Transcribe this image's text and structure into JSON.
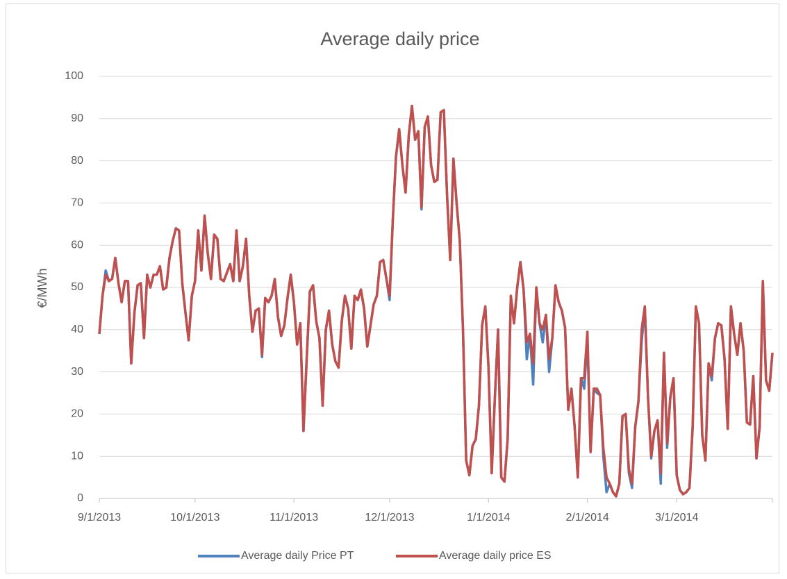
{
  "chart_data": {
    "type": "line",
    "title": "Average daily price",
    "y_label": "€/MWh",
    "x": [
      "9/1/2013",
      "9/2/2013",
      "9/3/2013",
      "9/4/2013",
      "9/5/2013",
      "9/6/2013",
      "9/7/2013",
      "9/8/2013",
      "9/9/2013",
      "9/10/2013",
      "9/11/2013",
      "9/12/2013",
      "9/13/2013",
      "9/14/2013",
      "9/15/2013",
      "9/16/2013",
      "9/17/2013",
      "9/18/2013",
      "9/19/2013",
      "9/20/2013",
      "9/21/2013",
      "9/22/2013",
      "9/23/2013",
      "9/24/2013",
      "9/25/2013",
      "9/26/2013",
      "9/27/2013",
      "9/28/2013",
      "9/29/2013",
      "9/30/2013",
      "10/1/2013",
      "10/2/2013",
      "10/3/2013",
      "10/4/2013",
      "10/5/2013",
      "10/6/2013",
      "10/7/2013",
      "10/8/2013",
      "10/9/2013",
      "10/10/2013",
      "10/11/2013",
      "10/12/2013",
      "10/13/2013",
      "10/14/2013",
      "10/15/2013",
      "10/16/2013",
      "10/17/2013",
      "10/18/2013",
      "10/19/2013",
      "10/20/2013",
      "10/21/2013",
      "10/22/2013",
      "10/23/2013",
      "10/24/2013",
      "10/25/2013",
      "10/26/2013",
      "10/27/2013",
      "10/28/2013",
      "10/29/2013",
      "10/30/2013",
      "10/31/2013",
      "11/1/2013",
      "11/2/2013",
      "11/3/2013",
      "11/4/2013",
      "11/5/2013",
      "11/6/2013",
      "11/7/2013",
      "11/8/2013",
      "11/9/2013",
      "11/10/2013",
      "11/11/2013",
      "11/12/2013",
      "11/13/2013",
      "11/14/2013",
      "11/15/2013",
      "11/16/2013",
      "11/17/2013",
      "11/18/2013",
      "11/19/2013",
      "11/20/2013",
      "11/21/2013",
      "11/22/2013",
      "11/23/2013",
      "11/24/2013",
      "11/25/2013",
      "11/26/2013",
      "11/27/2013",
      "11/28/2013",
      "11/29/2013",
      "11/30/2013",
      "12/1/2013",
      "12/2/2013",
      "12/3/2013",
      "12/4/2013",
      "12/5/2013",
      "12/6/2013",
      "12/7/2013",
      "12/8/2013",
      "12/9/2013",
      "12/10/2013",
      "12/11/2013",
      "12/12/2013",
      "12/13/2013",
      "12/14/2013",
      "12/15/2013",
      "12/16/2013",
      "12/17/2013",
      "12/18/2013",
      "12/19/2013",
      "12/20/2013",
      "12/21/2013",
      "12/22/2013",
      "12/23/2013",
      "12/24/2013",
      "12/25/2013",
      "12/26/2013",
      "12/27/2013",
      "12/28/2013",
      "12/29/2013",
      "12/30/2013",
      "12/31/2013",
      "1/1/2014",
      "1/2/2014",
      "1/3/2014",
      "1/4/2014",
      "1/5/2014",
      "1/6/2014",
      "1/7/2014",
      "1/8/2014",
      "1/9/2014",
      "1/10/2014",
      "1/11/2014",
      "1/12/2014",
      "1/13/2014",
      "1/14/2014",
      "1/15/2014",
      "1/16/2014",
      "1/17/2014",
      "1/18/2014",
      "1/19/2014",
      "1/20/2014",
      "1/21/2014",
      "1/22/2014",
      "1/23/2014",
      "1/24/2014",
      "1/25/2014",
      "1/26/2014",
      "1/27/2014",
      "1/28/2014",
      "1/29/2014",
      "1/30/2014",
      "1/31/2014",
      "2/1/2014",
      "2/2/2014",
      "2/3/2014",
      "2/4/2014",
      "2/5/2014",
      "2/6/2014",
      "2/7/2014",
      "2/8/2014",
      "2/9/2014",
      "2/10/2014",
      "2/11/2014",
      "2/12/2014",
      "2/13/2014",
      "2/14/2014",
      "2/15/2014",
      "2/16/2014",
      "2/17/2014",
      "2/18/2014",
      "2/19/2014",
      "2/20/2014",
      "2/21/2014",
      "2/22/2014",
      "2/23/2014",
      "2/24/2014",
      "2/25/2014",
      "2/26/2014",
      "2/27/2014",
      "2/28/2014",
      "3/1/2014",
      "3/2/2014",
      "3/3/2014",
      "3/4/2014",
      "3/5/2014",
      "3/6/2014",
      "3/7/2014",
      "3/8/2014",
      "3/9/2014",
      "3/10/2014",
      "3/11/2014",
      "3/12/2014",
      "3/13/2014",
      "3/14/2014",
      "3/15/2014",
      "3/16/2014",
      "3/17/2014",
      "3/18/2014",
      "3/19/2014",
      "3/20/2014",
      "3/21/2014",
      "3/22/2014",
      "3/23/2014",
      "3/24/2014",
      "3/25/2014",
      "3/26/2014",
      "3/27/2014",
      "3/28/2014",
      "3/29/2014",
      "3/30/2014",
      "3/31/2014"
    ],
    "series": [
      {
        "name": "Average daily Price PT",
        "color": "#4f81bd",
        "values": [
          39,
          48,
          54,
          51.5,
          52,
          57,
          51,
          46.5,
          51.5,
          51.5,
          32,
          44,
          50.5,
          51,
          38,
          53,
          50,
          53,
          53,
          55,
          49.5,
          50,
          57,
          61,
          64,
          63.5,
          51,
          44,
          37.5,
          48,
          51.5,
          63.5,
          54,
          67,
          58,
          52,
          62.5,
          61.5,
          52,
          51.5,
          53.5,
          55.5,
          51.5,
          63.5,
          51.5,
          55,
          61.5,
          48,
          39.5,
          44.5,
          45,
          33.5,
          47.5,
          46.5,
          48,
          52,
          43,
          38.5,
          41,
          47.5,
          53,
          46.5,
          36.5,
          41.5,
          16,
          33,
          49,
          50.5,
          42,
          38,
          22,
          40,
          44.5,
          36.5,
          32.5,
          31,
          42,
          48,
          45,
          35.5,
          48,
          47,
          49.5,
          45,
          36,
          41,
          46,
          48,
          56,
          56.5,
          52,
          47,
          66,
          81,
          87.5,
          79,
          72.5,
          86,
          93,
          85,
          87,
          68.5,
          88,
          90.5,
          79,
          75,
          75.5,
          91.5,
          92,
          72,
          56.5,
          80.5,
          70,
          61,
          40,
          9,
          5.5,
          12.5,
          14,
          22,
          41,
          45.5,
          31,
          6,
          24,
          40,
          5,
          4,
          14,
          48,
          41.5,
          50,
          56,
          49.5,
          33,
          39,
          27,
          50,
          41.5,
          37,
          43.5,
          30,
          38,
          50.5,
          46.5,
          44.5,
          40.5,
          21,
          26,
          17,
          5,
          28.5,
          26,
          38,
          11,
          26,
          25,
          24.5,
          10,
          1.5,
          3.5,
          1.5,
          0.5,
          3.5,
          19.5,
          20,
          6,
          2.5,
          17,
          23,
          37,
          45.5,
          24,
          9.5,
          16,
          18.5,
          3.5,
          34.5,
          12,
          24,
          28.5,
          5.5,
          2,
          1,
          1.5,
          2.5,
          17,
          45.5,
          41.5,
          15,
          9,
          32,
          28,
          38,
          41.5,
          41,
          33,
          16.5,
          45.5,
          39,
          34,
          41.5,
          35,
          18,
          17.5,
          29,
          9.5,
          17,
          51.5,
          28,
          25.5,
          34.5
        ]
      },
      {
        "name": "Average daily price ES",
        "color": "#c0504d",
        "values": [
          39,
          48,
          53,
          51.5,
          52,
          57,
          51,
          46.5,
          51.5,
          51.5,
          32,
          44,
          50.5,
          51,
          38,
          53,
          50,
          53,
          53,
          55,
          49.5,
          50,
          57,
          61,
          64,
          63.5,
          51,
          44,
          37.5,
          48,
          51.5,
          63.5,
          54,
          67,
          58,
          52,
          62.5,
          61.5,
          52,
          51.5,
          53.5,
          55.5,
          51.5,
          63.5,
          51.5,
          55,
          61.5,
          48,
          39.5,
          44.5,
          45,
          34,
          47.5,
          46.5,
          48,
          52,
          43,
          38.5,
          41,
          47.5,
          53,
          46.5,
          36.5,
          41.5,
          16,
          33,
          49,
          50.5,
          42,
          38,
          22,
          40,
          44.5,
          36.5,
          32.5,
          31,
          42,
          48,
          45,
          35.5,
          48,
          47,
          49.5,
          45,
          36,
          41,
          46,
          48,
          56,
          56.5,
          52,
          48,
          66,
          81,
          87.5,
          79,
          72.5,
          86,
          93,
          85,
          87,
          69,
          88,
          90.5,
          79,
          75,
          75.5,
          91.5,
          92,
          72,
          56.5,
          80.5,
          70,
          61,
          40,
          9,
          5.5,
          12.5,
          14,
          22,
          41,
          45.5,
          31,
          6,
          24,
          40,
          5,
          4,
          14,
          48,
          41.5,
          50,
          56,
          49.5,
          37,
          39,
          32,
          50,
          41.5,
          40,
          43.5,
          33,
          38,
          50.5,
          46.5,
          44.5,
          40.5,
          21,
          26,
          17,
          5,
          28.5,
          28.5,
          39.5,
          11,
          26,
          26,
          24.5,
          12,
          5,
          3.5,
          1.5,
          0.5,
          3.5,
          19.5,
          20,
          7,
          3.5,
          17,
          23,
          40,
          45.5,
          24,
          10,
          16,
          18.5,
          6,
          34.5,
          13,
          24,
          28.5,
          5.5,
          2,
          1,
          1.5,
          2.5,
          17,
          45.5,
          41.5,
          15,
          9,
          32,
          29,
          38,
          41.5,
          41,
          33,
          16.5,
          45.5,
          39,
          34,
          41.5,
          35,
          18,
          17.5,
          29,
          9.5,
          17,
          51.5,
          28,
          25.5,
          34.5
        ]
      }
    ],
    "xlim": [
      "9/1/2013",
      "3/31/2014"
    ],
    "xticks": [
      "9/1/2013",
      "10/1/2013",
      "11/1/2013",
      "12/1/2013",
      "1/1/2014",
      "2/1/2014",
      "3/1/2014"
    ],
    "ylim": [
      0,
      100
    ],
    "yticks": [
      0,
      10,
      20,
      30,
      40,
      50,
      60,
      70,
      80,
      90,
      100
    ],
    "grid": true,
    "legend": "bottom"
  }
}
